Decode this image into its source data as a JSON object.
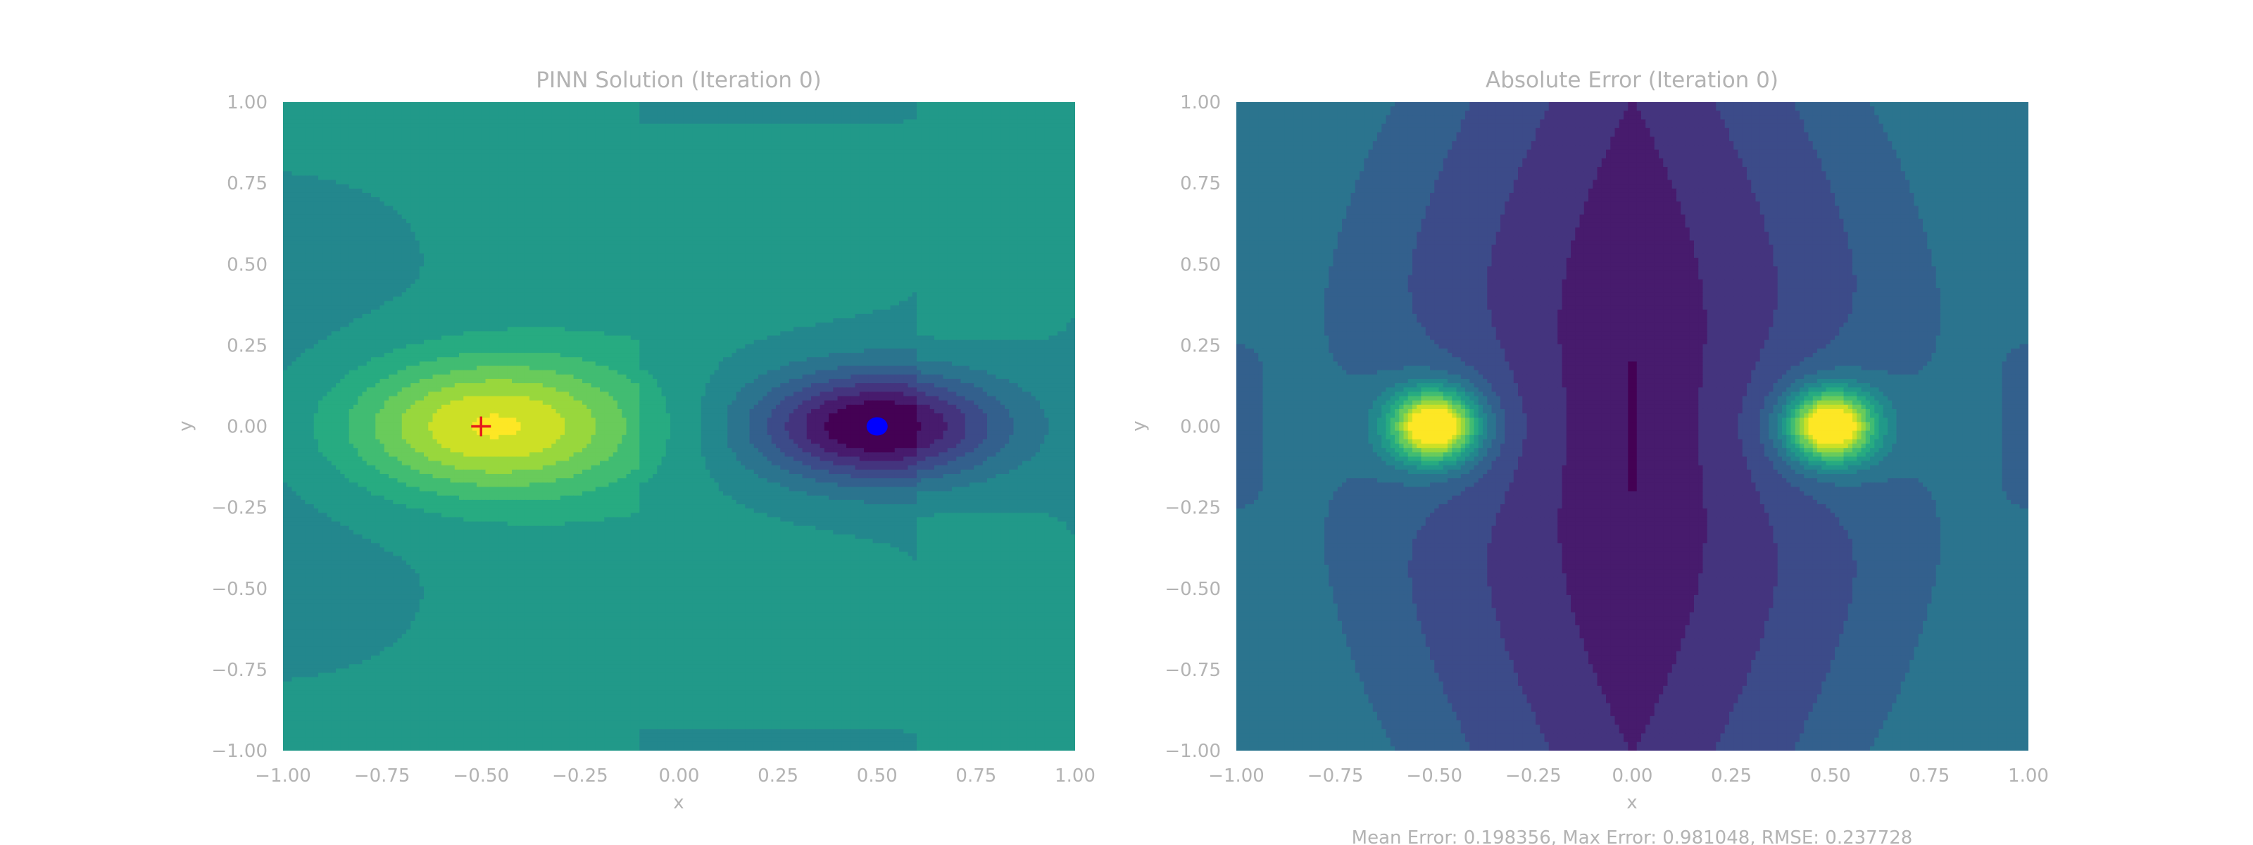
{
  "chart_data": [
    {
      "type": "heatmap",
      "variant": "filled-contour",
      "title": "PINN Solution (Iteration 0)",
      "xlabel": "x",
      "ylabel": "y",
      "xlim": [
        -1.0,
        1.0
      ],
      "ylim": [
        -1.0,
        1.0
      ],
      "xticks": [
        "−1.00",
        "−0.75",
        "−0.50",
        "−0.25",
        "0.00",
        "0.25",
        "0.50",
        "0.75",
        "1.00"
      ],
      "yticks": [
        "1.00",
        "0.75",
        "0.50",
        "0.25",
        "0.00",
        "−0.25",
        "−0.50",
        "−0.75",
        "−1.00"
      ],
      "colormap": "viridis",
      "grid": false,
      "features": [
        {
          "kind": "peak",
          "x": -0.48,
          "y": 0.0,
          "level": "max"
        },
        {
          "kind": "trough",
          "x": 0.5,
          "y": 0.0,
          "level": "min"
        }
      ],
      "markers": [
        {
          "kind": "plus",
          "x": -0.5,
          "y": 0.0,
          "color": "#e41a1c"
        },
        {
          "kind": "dot",
          "x": 0.5,
          "y": 0.0,
          "color": "#0000ff"
        }
      ]
    },
    {
      "type": "heatmap",
      "variant": "filled-contour",
      "title": "Absolute Error (Iteration 0)",
      "xlabel": "x",
      "ylabel": "y",
      "xlim": [
        -1.0,
        1.0
      ],
      "ylim": [
        -1.0,
        1.0
      ],
      "xticks": [
        "−1.00",
        "−0.75",
        "−0.50",
        "−0.25",
        "0.00",
        "0.25",
        "0.50",
        "0.75",
        "1.00"
      ],
      "yticks": [
        "1.00",
        "0.75",
        "0.50",
        "0.25",
        "0.00",
        "−0.25",
        "−0.50",
        "−0.75",
        "−1.00"
      ],
      "colormap": "viridis",
      "grid": false,
      "features": [
        {
          "kind": "peak",
          "x": -0.5,
          "y": 0.0,
          "level": "max"
        },
        {
          "kind": "peak",
          "x": 0.5,
          "y": 0.0,
          "level": "max"
        },
        {
          "kind": "valley",
          "x": 0.0,
          "y": 0.0,
          "level": "min",
          "shape": "vertical band"
        }
      ]
    }
  ],
  "footer": "Mean Error: 0.198356, Max Error: 0.981048, RMSE: 0.237728",
  "colors": {
    "text": "#b3b3b3",
    "plus_marker": "#e41a1c",
    "dot_marker": "#0000ff"
  }
}
